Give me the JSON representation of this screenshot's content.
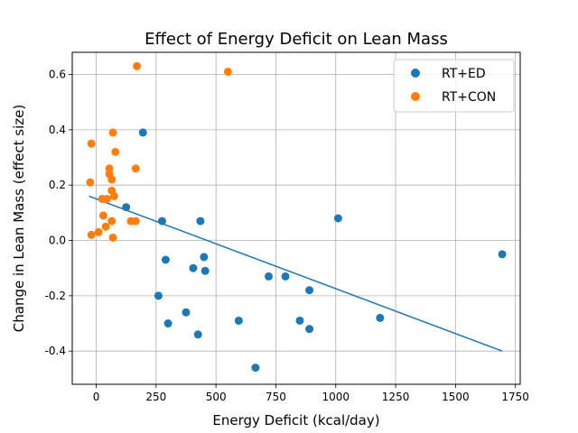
{
  "chart_data": {
    "type": "scatter",
    "title": "Effect of Energy Deficit on Lean Mass",
    "xlabel": "Energy Deficit (kcal/day)",
    "ylabel": "Change in Lean Mass (effect size)",
    "xlim": [
      -100,
      1770
    ],
    "ylim": [
      -0.52,
      0.68
    ],
    "xticks": [
      0,
      250,
      500,
      750,
      1000,
      1250,
      1500,
      1750
    ],
    "yticks": [
      -0.4,
      -0.2,
      0.0,
      0.2,
      0.4,
      0.6
    ],
    "grid": true,
    "legend_position": "top-right",
    "series": [
      {
        "name": "RT+ED",
        "color": "#1f77b4",
        "points": [
          [
            195,
            0.39
          ],
          [
            125,
            0.12
          ],
          [
            275,
            0.07
          ],
          [
            435,
            0.07
          ],
          [
            1010,
            0.08
          ],
          [
            1695,
            -0.05
          ],
          [
            290,
            -0.07
          ],
          [
            450,
            -0.06
          ],
          [
            405,
            -0.1
          ],
          [
            455,
            -0.11
          ],
          [
            720,
            -0.13
          ],
          [
            790,
            -0.13
          ],
          [
            890,
            -0.18
          ],
          [
            260,
            -0.2
          ],
          [
            375,
            -0.26
          ],
          [
            300,
            -0.3
          ],
          [
            595,
            -0.29
          ],
          [
            850,
            -0.29
          ],
          [
            1185,
            -0.28
          ],
          [
            890,
            -0.32
          ],
          [
            425,
            -0.34
          ],
          [
            665,
            -0.46
          ]
        ]
      },
      {
        "name": "RT+CON",
        "color": "#ff7f0e",
        "points": [
          [
            170,
            0.63
          ],
          [
            550,
            0.61
          ],
          [
            70,
            0.39
          ],
          [
            -20,
            0.35
          ],
          [
            80,
            0.32
          ],
          [
            55,
            0.26
          ],
          [
            165,
            0.26
          ],
          [
            55,
            0.24
          ],
          [
            65,
            0.22
          ],
          [
            -25,
            0.21
          ],
          [
            65,
            0.18
          ],
          [
            75,
            0.16
          ],
          [
            25,
            0.15
          ],
          [
            45,
            0.15
          ],
          [
            30,
            0.09
          ],
          [
            145,
            0.07
          ],
          [
            165,
            0.07
          ],
          [
            65,
            0.07
          ],
          [
            40,
            0.05
          ],
          [
            10,
            0.03
          ],
          [
            -20,
            0.02
          ],
          [
            70,
            0.01
          ]
        ]
      }
    ],
    "fit_line": {
      "color": "#1f77b4",
      "x": [
        -30,
        1695
      ],
      "y": [
        0.16,
        -0.4
      ]
    }
  }
}
